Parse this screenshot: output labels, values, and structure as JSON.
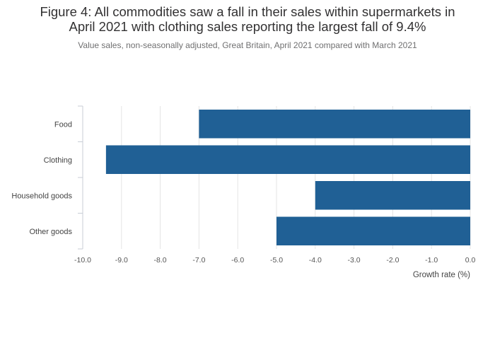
{
  "title_line1": "Figure 4: All commodities saw a fall in their sales within supermarkets in",
  "title_line2": "April 2021 with clothing sales reporting the largest fall of 9.4%",
  "subtitle": "Value sales, non-seasonally adjusted, Great Britain, April 2021 compared with March 2021",
  "chart_data": {
    "type": "bar",
    "orientation": "horizontal",
    "categories": [
      "Food",
      "Clothing",
      "Household goods",
      "Other goods"
    ],
    "values": [
      -7.0,
      -9.4,
      -4.0,
      -5.0
    ],
    "xlabel": "Growth rate (%)",
    "ylabel": "",
    "xlim": [
      -10,
      0
    ],
    "xticks": [
      "-10.0",
      "-9.0",
      "-8.0",
      "-7.0",
      "-6.0",
      "-5.0",
      "-4.0",
      "-3.0",
      "-2.0",
      "-1.0",
      "0.0"
    ],
    "grid": true,
    "bar_color": "#206095"
  }
}
